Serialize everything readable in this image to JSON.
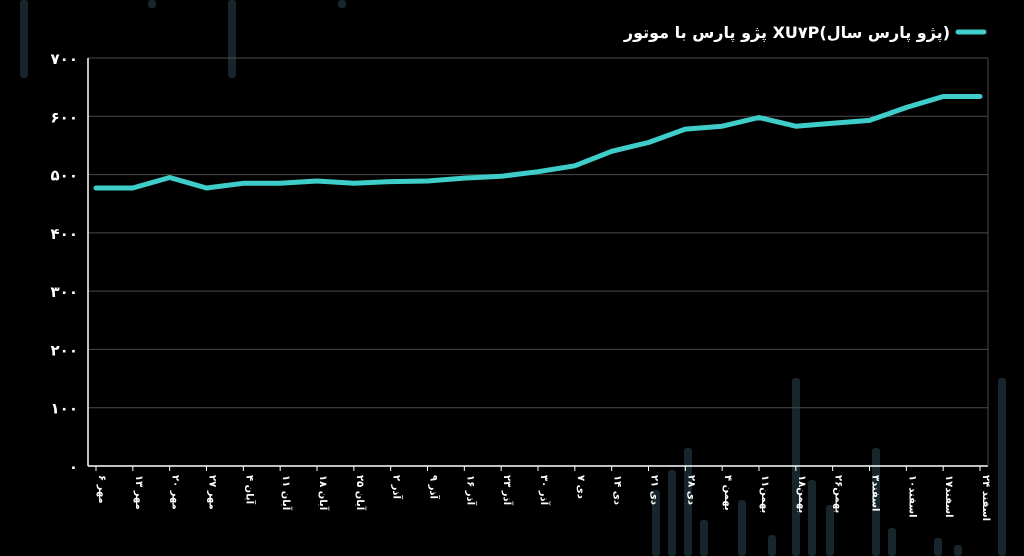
{
  "colors": {
    "background": "#000000",
    "line": "#3ecdc8",
    "grid": "#4a4a4a",
    "axis": "#ffffff",
    "text": "#ffffff",
    "decor": "#17262c"
  },
  "chart_data": {
    "type": "line",
    "title": "",
    "xlabel": "",
    "ylabel": "",
    "grid": true,
    "legend_position": "top-right",
    "ylim": [
      0,
      700
    ],
    "y_ticks": [
      "۰",
      "۱۰۰",
      "۲۰۰",
      "۳۰۰",
      "۴۰۰",
      "۵۰۰",
      "۶۰۰",
      "۷۰۰"
    ],
    "categories": [
      "۶ مهر",
      "۱۳ مهر",
      "۲۰ مهر",
      "۲۷ مهر",
      "۴ آبان",
      "۱۱ آبان",
      "۱۸ آبان",
      "۲۵ آبان",
      "۲ آذر",
      "۹ آذر",
      "۱۶ آذر",
      "۲۳ آذر",
      "۳۰ آذر",
      "۷ دی",
      "۱۴ دی",
      "۲۱ دی",
      "۲۸ دی",
      "۴ بهمن",
      "۱۱بهمن",
      "۱۸بهمن",
      "۲۶بهمن",
      "۳اسفند",
      "۱۰اسفند",
      "۱۷اسفند",
      "۲۴ اسفند"
    ],
    "series": [
      {
        "name": "پژو پارس با موتور XU۷P(پژو پارس سال)",
        "values": [
          477,
          477,
          495,
          477,
          485,
          485,
          489,
          485,
          488,
          489,
          494,
          497,
          505,
          515,
          540,
          555,
          578,
          583,
          598,
          583,
          588,
          593,
          615,
          634,
          634
        ]
      }
    ]
  }
}
